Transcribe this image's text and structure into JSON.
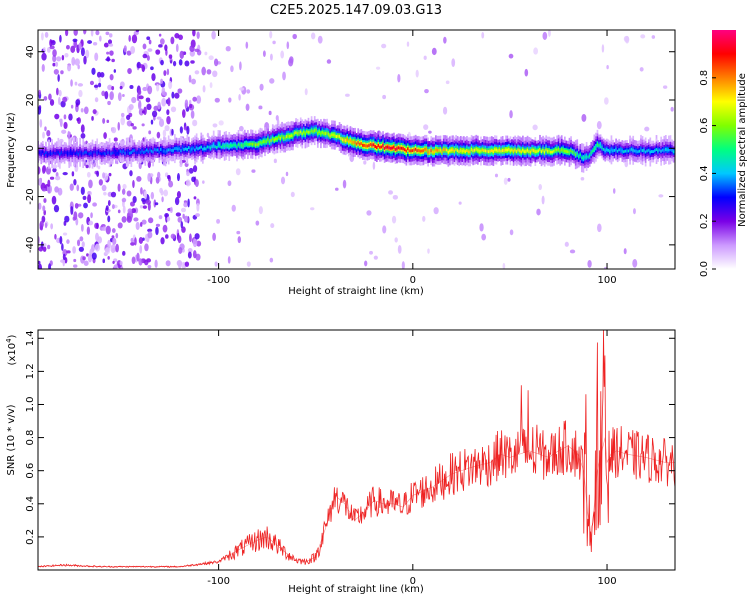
{
  "title": "C2E5.2025.147.09.03.G13",
  "colorbar": {
    "label": "Normalized spectral amplitude",
    "ticks": [
      "0.0",
      "0.2",
      "0.4",
      "0.6",
      "0.8"
    ],
    "range": [
      0,
      1
    ],
    "colormap": [
      "#ffffff",
      "#cc99ff",
      "#7a00e6",
      "#0000ff",
      "#00c8ff",
      "#00ff80",
      "#80ff00",
      "#ffff00",
      "#ff8000",
      "#ff0000",
      "#ff0080"
    ]
  },
  "chart_data": [
    {
      "type": "heatmap",
      "xlabel": "Height of straight line (km)",
      "ylabel": "Frequency (Hz)",
      "xlim": [
        -193,
        135
      ],
      "ylim": [
        -50,
        49
      ],
      "xticks": [
        -100,
        0,
        100
      ],
      "yticks": [
        -40,
        -20,
        0,
        20,
        40
      ],
      "ridge": {
        "x": [
          -193,
          -160,
          -130,
          -110,
          -100,
          -90,
          -80,
          -70,
          -60,
          -50,
          -40,
          -30,
          -20,
          -10,
          0,
          20,
          40,
          60,
          80,
          85,
          90,
          95,
          100,
          135
        ],
        "frequency": [
          -2,
          -2,
          -1,
          0,
          1,
          1,
          2,
          4,
          6,
          7,
          5,
          2,
          1,
          0,
          -1,
          -1,
          -1,
          -1,
          -1,
          -3,
          -4,
          2,
          -1,
          -1
        ],
        "amplitude": [
          0.3,
          0.3,
          0.35,
          0.4,
          0.45,
          0.5,
          0.6,
          0.6,
          0.65,
          0.6,
          0.65,
          0.8,
          0.9,
          0.95,
          0.85,
          0.7,
          0.7,
          0.7,
          0.6,
          0.5,
          0.45,
          0.5,
          0.4,
          0.4
        ]
      }
    },
    {
      "type": "line",
      "xlabel": "Height of straight line (km)",
      "ylabel": "SNR (10 * v/v)",
      "yscale_note": "(x10",
      "yscale_exp": "4",
      "xlim": [
        -193,
        135
      ],
      "ylim": [
        0,
        1.45
      ],
      "xticks": [
        -100,
        0,
        100
      ],
      "yticks": [
        0.2,
        0.4,
        0.6,
        0.8,
        1.0,
        1.2,
        1.4
      ],
      "series": [
        {
          "color": "#ee2222",
          "x": [
            -193,
            -180,
            -160,
            -140,
            -120,
            -100,
            -90,
            -80,
            -75,
            -70,
            -65,
            -60,
            -55,
            -50,
            -45,
            -40,
            -35,
            -30,
            -25,
            -20,
            -15,
            -10,
            -5,
            0,
            10,
            20,
            30,
            40,
            45,
            50,
            55,
            60,
            65,
            70,
            75,
            80,
            85,
            88,
            90,
            92,
            95,
            97,
            99,
            100,
            102,
            105,
            110,
            120,
            130,
            135
          ],
          "y": [
            0.02,
            0.03,
            0.02,
            0.02,
            0.02,
            0.05,
            0.12,
            0.18,
            0.2,
            0.15,
            0.1,
            0.06,
            0.05,
            0.08,
            0.25,
            0.45,
            0.4,
            0.3,
            0.35,
            0.42,
            0.4,
            0.4,
            0.38,
            0.45,
            0.5,
            0.58,
            0.62,
            0.65,
            0.7,
            0.68,
            0.7,
            0.72,
            0.7,
            0.68,
            0.72,
            0.75,
            0.7,
            0.6,
            0.35,
            0.2,
            0.6,
            0.7,
            0.8,
            0.65,
            0.7,
            0.72,
            0.7,
            0.68,
            0.65,
            0.65
          ]
        }
      ]
    }
  ]
}
